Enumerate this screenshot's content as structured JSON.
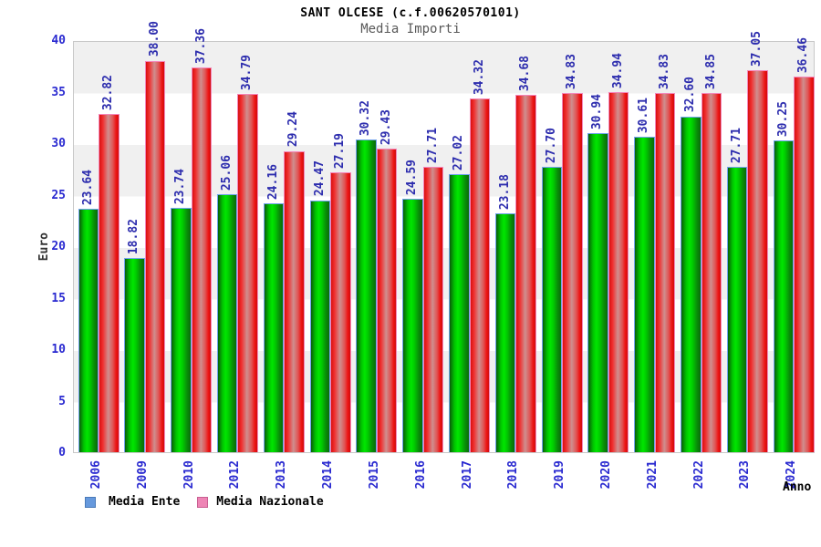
{
  "title": "SANT OLCESE (c.f.00620570101)",
  "subtitle": "Media Importi",
  "chart_data": {
    "type": "bar",
    "title": "SANT OLCESE (c.f.00620570101)",
    "subtitle": "Media Importi",
    "xlabel": "Anno",
    "ylabel": "Euro",
    "ylim": [
      0,
      40
    ],
    "yticks": [
      0,
      5,
      10,
      15,
      20,
      25,
      30,
      35,
      40
    ],
    "grid": "alternating-horizontal-bands",
    "legend_position": "bottom-left",
    "categories": [
      "2006",
      "2009",
      "2010",
      "2012",
      "2013",
      "2014",
      "2015",
      "2016",
      "2017",
      "2018",
      "2019",
      "2020",
      "2021",
      "2022",
      "2023",
      "2024"
    ],
    "series": [
      {
        "name": "Media Ente",
        "legend_color": "#6699dd",
        "bar_color": "#00cc00",
        "values": [
          23.64,
          18.82,
          23.74,
          25.06,
          24.16,
          24.47,
          30.32,
          24.59,
          27.02,
          23.18,
          27.7,
          30.94,
          30.61,
          32.6,
          27.71,
          30.25
        ]
      },
      {
        "name": "Media Nazionale",
        "legend_color": "#ee85b5",
        "bar_color": "#ee1212",
        "values": [
          32.82,
          38.0,
          37.36,
          34.79,
          29.24,
          27.19,
          29.43,
          27.71,
          34.32,
          34.68,
          34.83,
          34.94,
          34.83,
          34.85,
          37.05,
          36.46
        ]
      }
    ]
  },
  "colors": {
    "axis_label": "#2929d0",
    "value_label": "#2d2dae",
    "band_gray": "#f0f0f0",
    "plot_border": "#c8c8c8",
    "subtitle_gray": "#595959"
  }
}
